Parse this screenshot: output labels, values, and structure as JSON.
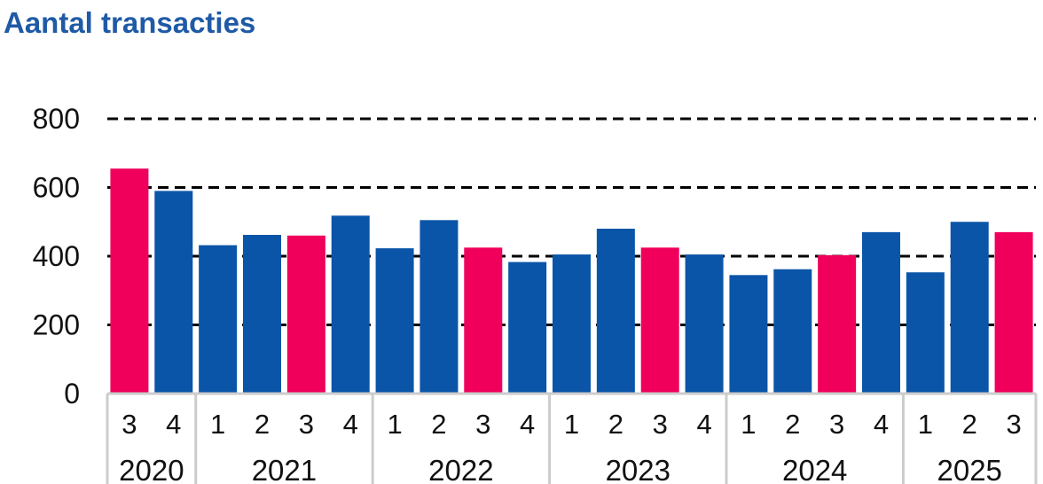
{
  "title": "Aantal transacties",
  "colors": {
    "title": "#1f5aa6",
    "highlight": "#f0005a",
    "normal": "#0b55a8",
    "grid": "#000000",
    "axis": "#cccccc",
    "text": "#111111"
  },
  "chart_data": {
    "type": "bar",
    "categories": [
      "3",
      "4",
      "1",
      "2",
      "3",
      "4",
      "1",
      "2",
      "3",
      "4",
      "1",
      "2",
      "3",
      "4",
      "1",
      "2",
      "3",
      "4",
      "1",
      "2",
      "3"
    ],
    "groups": [
      {
        "label": "2020",
        "count": 2
      },
      {
        "label": "2021",
        "count": 4
      },
      {
        "label": "2022",
        "count": 4
      },
      {
        "label": "2023",
        "count": 4
      },
      {
        "label": "2024",
        "count": 4
      },
      {
        "label": "2025",
        "count": 3
      }
    ],
    "values": [
      655,
      590,
      432,
      462,
      460,
      518,
      423,
      505,
      425,
      383,
      405,
      480,
      425,
      405,
      345,
      362,
      403,
      470,
      353,
      500,
      470
    ],
    "highlight": [
      true,
      false,
      false,
      false,
      true,
      false,
      false,
      false,
      true,
      false,
      false,
      false,
      true,
      false,
      false,
      false,
      true,
      false,
      false,
      false,
      true
    ],
    "ylim": [
      0,
      800
    ],
    "yticks": [
      0,
      200,
      400,
      600,
      800
    ],
    "grid": "dashed horizontal lines",
    "legend": "none"
  }
}
